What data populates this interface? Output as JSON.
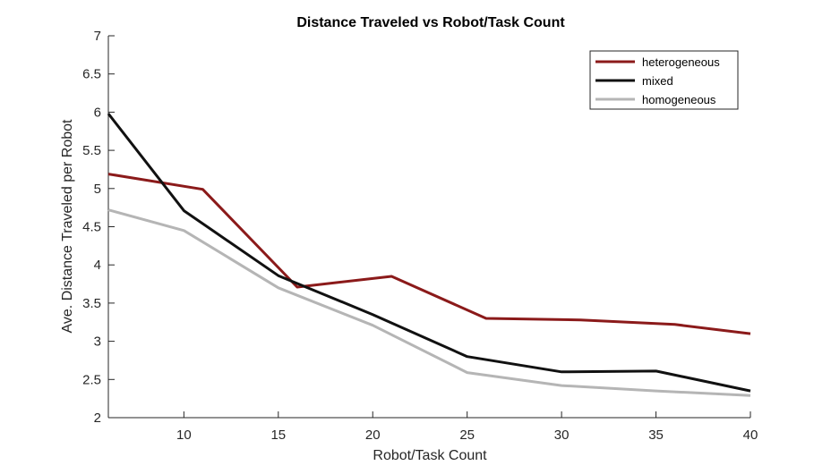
{
  "chart_data": {
    "type": "line",
    "title": "Distance Traveled vs Robot/Task Count",
    "xlabel": "Robot/Task Count",
    "ylabel": "Ave. Distance Traveled per Robot",
    "xlim": [
      6,
      40
    ],
    "ylim": [
      2,
      7
    ],
    "xticks": [
      10,
      15,
      20,
      25,
      30,
      35,
      40
    ],
    "yticks": [
      2,
      2.5,
      3,
      3.5,
      4,
      4.5,
      5,
      5.5,
      6,
      6.5,
      7
    ],
    "grid": false,
    "legend_position": "top-right",
    "series": [
      {
        "name": "heterogeneous",
        "color": "#8b1a1a",
        "x": [
          6,
          11,
          16,
          21,
          26,
          31,
          36,
          40
        ],
        "y": [
          5.19,
          4.99,
          3.71,
          3.85,
          3.3,
          3.28,
          3.22,
          3.1
        ]
      },
      {
        "name": "mixed",
        "color": "#111111",
        "x": [
          6,
          10,
          15,
          20,
          25,
          30,
          35,
          40
        ],
        "y": [
          5.98,
          4.71,
          3.86,
          3.35,
          2.8,
          2.6,
          2.61,
          2.35
        ]
      },
      {
        "name": "homogeneous",
        "color": "#b5b5b5",
        "x": [
          6,
          10,
          15,
          20,
          25,
          30,
          35,
          40
        ],
        "y": [
          4.72,
          4.45,
          3.7,
          3.21,
          2.59,
          2.42,
          2.35,
          2.29
        ]
      }
    ]
  }
}
